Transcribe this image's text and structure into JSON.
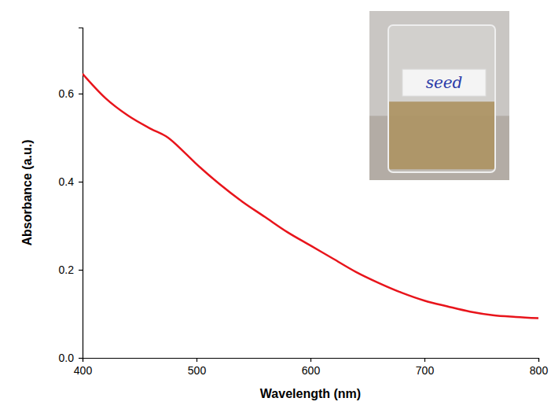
{
  "chart_data": {
    "type": "line",
    "x_label": "Wavelength (nm)",
    "y_label": "Absorbance (a.u.)",
    "annotation": "seed",
    "x": [
      400,
      420,
      440,
      460,
      475,
      490,
      500,
      520,
      540,
      560,
      580,
      600,
      620,
      640,
      660,
      680,
      700,
      720,
      740,
      760,
      780,
      800
    ],
    "series": [
      {
        "color": "#e8141b",
        "values": [
          0.645,
          0.59,
          0.55,
          0.52,
          0.5,
          0.465,
          0.44,
          0.395,
          0.355,
          0.32,
          0.285,
          0.255,
          0.225,
          0.195,
          0.17,
          0.148,
          0.13,
          0.117,
          0.105,
          0.097,
          0.093,
          0.09
        ]
      }
    ],
    "xlim": [
      400,
      800
    ],
    "xticks": [
      400,
      500,
      600,
      700,
      800
    ],
    "ylim": [
      0,
      0.75
    ],
    "yticks": [
      {
        "value": 0,
        "label": "0.0"
      },
      0.2,
      0.4,
      0.6
    ],
    "grid": false
  }
}
